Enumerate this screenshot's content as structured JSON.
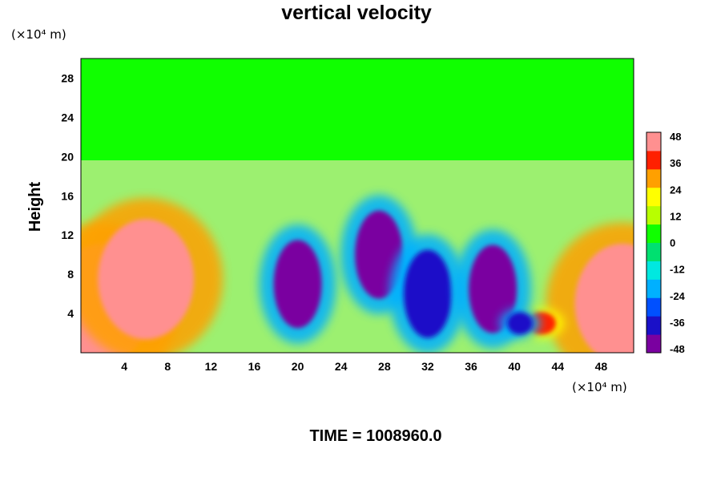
{
  "chart_data": {
    "type": "heatmap",
    "title": "vertical velocity",
    "ylabel": "Height",
    "y_unit": "(×10⁴ m)",
    "x_unit": "(×10⁴ m)",
    "footer": "TIME = 1008960.0",
    "x_ticks": [
      "4",
      "8",
      "12",
      "16",
      "20",
      "24",
      "28",
      "32",
      "36",
      "40",
      "44",
      "48"
    ],
    "y_ticks": [
      "4",
      "8",
      "12",
      "16",
      "20",
      "24",
      "28"
    ],
    "xlim": [
      0,
      51
    ],
    "ylim": [
      0,
      30
    ],
    "colorbar": {
      "ticks": [
        "48",
        "36",
        "24",
        "12",
        "0",
        "-12",
        "-24",
        "-36",
        "-48"
      ],
      "range": [
        -48,
        48
      ],
      "colors": [
        "#7a00a0",
        "#1a10c8",
        "#0050ff",
        "#00b0ff",
        "#00e8e0",
        "#00e070",
        "#10ff00",
        "#b8ff00",
        "#ffff00",
        "#ffa000",
        "#ff2000",
        "#ff9090"
      ]
    },
    "features": [
      {
        "kind": "updraft",
        "x": 2,
        "y": 5,
        "value": 48
      },
      {
        "kind": "updraft",
        "x": 6,
        "y": 7.5,
        "value": 44
      },
      {
        "kind": "updraft",
        "x": 50,
        "y": 5,
        "value": 44
      },
      {
        "kind": "downdraft",
        "x": 20,
        "y": 7,
        "value": -44
      },
      {
        "kind": "downdraft",
        "x": 27.5,
        "y": 10,
        "value": -44
      },
      {
        "kind": "downdraft",
        "x": 32,
        "y": 6,
        "value": -40
      },
      {
        "kind": "downdraft",
        "x": 38,
        "y": 6.5,
        "value": -44
      },
      {
        "kind": "updraft",
        "x": 42.5,
        "y": 3,
        "value": 36
      },
      {
        "kind": "downdraft",
        "x": 40.5,
        "y": 3,
        "value": -36
      }
    ]
  }
}
